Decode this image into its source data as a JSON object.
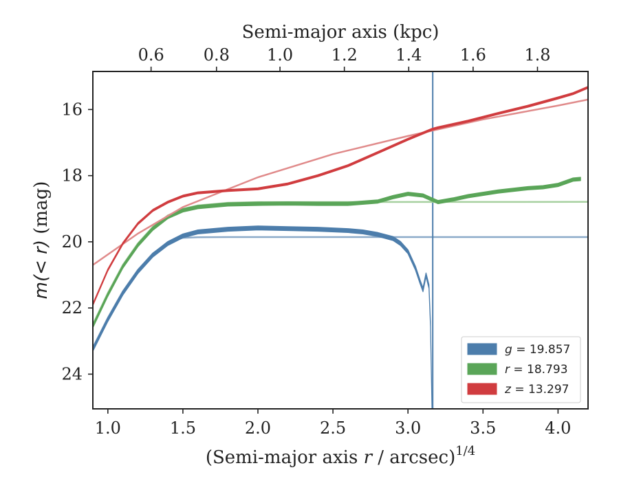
{
  "chart_data": {
    "type": "line",
    "xlabel_prefix": "(Semi-major axis ",
    "xlabel_var": "r",
    "xlabel_suffix": " / arcsec)",
    "xlabel_exp": "1/4",
    "ylabel_prefix": "m(< r)",
    "ylabel_suffix": " (mag)",
    "top_xlabel": "Semi-major axis (kpc)",
    "xlim": [
      0.9,
      4.2
    ],
    "ylim": [
      25.05,
      14.85
    ],
    "y_inverted": true,
    "xticks": [
      1.0,
      1.5,
      2.0,
      2.5,
      3.0,
      3.5,
      4.0
    ],
    "xtick_labels": [
      "1.0",
      "1.5",
      "2.0",
      "2.5",
      "3.0",
      "3.5",
      "4.0"
    ],
    "yticks": [
      16,
      18,
      20,
      22,
      24
    ],
    "ytick_labels": [
      "16",
      "18",
      "20",
      "22",
      "24"
    ],
    "top_ticks_x": [
      1.288,
      1.724,
      2.147,
      2.576,
      3.005,
      3.434,
      3.863
    ],
    "top_tick_labels": [
      "0.6",
      "0.8",
      "1.0",
      "1.2",
      "1.4",
      "1.6",
      "1.8"
    ],
    "legend_position": "lower-right",
    "series": [
      {
        "name": "g = 19.857",
        "legend_var": "g",
        "legend_value": "= 19.857",
        "color": "#4c7dab",
        "fit_color": "#8aa9c8",
        "band_width": 0.12,
        "x": [
          0.9,
          1.0,
          1.1,
          1.2,
          1.3,
          1.4,
          1.5,
          1.6,
          1.8,
          2.0,
          2.2,
          2.4,
          2.6,
          2.7,
          2.8,
          2.9,
          2.95,
          3.0,
          3.05,
          3.08,
          3.1,
          3.12,
          3.14,
          3.15,
          3.16
        ],
        "y": [
          23.25,
          22.35,
          21.55,
          20.9,
          20.4,
          20.05,
          19.82,
          19.7,
          19.62,
          19.58,
          19.6,
          19.62,
          19.66,
          19.7,
          19.78,
          19.9,
          20.05,
          20.3,
          20.8,
          21.2,
          21.45,
          21.0,
          21.35,
          22.5,
          25.05
        ],
        "spike_x": 3.165,
        "fit_x": [
          0.9,
          1.0,
          1.1,
          1.2,
          1.3,
          1.4,
          1.5,
          1.6,
          1.8,
          2.0,
          4.2
        ],
        "fit_y": [
          23.2,
          22.3,
          21.5,
          20.85,
          20.35,
          20.02,
          19.88,
          19.86,
          19.857,
          19.857,
          19.857
        ]
      },
      {
        "name": "r = 18.793",
        "legend_var": "r",
        "legend_value": "= 18.793",
        "color": "#5aa558",
        "fit_color": "#a6d09f",
        "band_width": 0.1,
        "x": [
          0.9,
          1.0,
          1.1,
          1.2,
          1.3,
          1.4,
          1.5,
          1.6,
          1.8,
          2.0,
          2.2,
          2.4,
          2.6,
          2.8,
          2.9,
          3.0,
          3.1,
          3.16,
          3.2,
          3.3,
          3.4,
          3.6,
          3.8,
          3.9,
          4.0,
          4.1,
          4.15
        ],
        "y": [
          22.55,
          21.6,
          20.75,
          20.1,
          19.6,
          19.25,
          19.05,
          18.95,
          18.87,
          18.85,
          18.84,
          18.85,
          18.85,
          18.78,
          18.65,
          18.55,
          18.6,
          18.72,
          18.8,
          18.72,
          18.62,
          18.48,
          18.38,
          18.35,
          18.28,
          18.12,
          18.1
        ],
        "fit_x": [
          0.9,
          1.0,
          1.1,
          1.2,
          1.3,
          1.4,
          1.5,
          1.6,
          1.8,
          2.0,
          4.2
        ],
        "fit_y": [
          22.5,
          21.55,
          20.7,
          20.05,
          19.55,
          19.2,
          19.0,
          18.9,
          18.82,
          18.8,
          18.793
        ]
      },
      {
        "name": "z = 13.297",
        "legend_var": "z",
        "legend_value": "= 13.297",
        "color": "#d03c3f",
        "fit_color": "#e08a8a",
        "band_width": 0.06,
        "x": [
          0.9,
          1.0,
          1.1,
          1.2,
          1.3,
          1.4,
          1.5,
          1.6,
          1.8,
          2.0,
          2.2,
          2.4,
          2.6,
          2.8,
          3.0,
          3.16,
          3.2,
          3.4,
          3.6,
          3.8,
          4.0,
          4.1,
          4.2
        ],
        "y": [
          21.9,
          20.85,
          20.05,
          19.45,
          19.05,
          18.8,
          18.62,
          18.52,
          18.45,
          18.4,
          18.25,
          18.0,
          17.7,
          17.3,
          16.9,
          16.6,
          16.55,
          16.35,
          16.12,
          15.9,
          15.65,
          15.52,
          15.33
        ],
        "fit_x": [
          0.9,
          1.2,
          1.5,
          2.0,
          2.5,
          3.0,
          3.5,
          4.0,
          4.2
        ],
        "fit_y": [
          20.7,
          19.75,
          18.95,
          18.05,
          17.35,
          16.8,
          16.3,
          15.88,
          15.7
        ]
      }
    ]
  }
}
